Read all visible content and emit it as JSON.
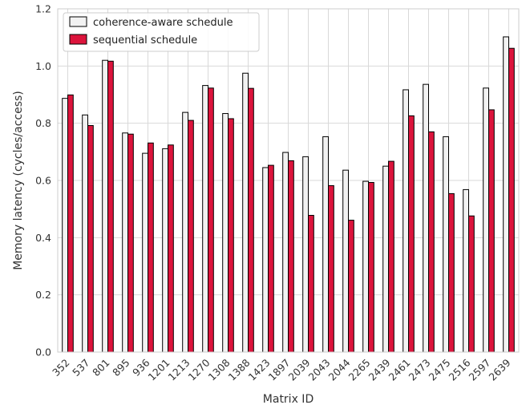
{
  "chart_data": {
    "type": "bar",
    "title": "",
    "xlabel": "Matrix ID",
    "ylabel": "Memory latency (cycles/access)",
    "ylim": [
      0,
      1.2
    ],
    "yticks": [
      "0.0",
      "0.2",
      "0.4",
      "0.6",
      "0.8",
      "1.0",
      "1.2"
    ],
    "grid": true,
    "legend_position": "top-left",
    "categories": [
      "352",
      "537",
      "801",
      "895",
      "936",
      "1201",
      "1213",
      "1270",
      "1308",
      "1388",
      "1423",
      "1897",
      "2039",
      "2043",
      "2044",
      "2265",
      "2439",
      "2461",
      "2473",
      "2475",
      "2516",
      "2597",
      "2639"
    ],
    "series": [
      {
        "name": "coherence-aware schedule",
        "color": "#f2f2f2",
        "values": [
          0.887,
          0.829,
          1.02,
          0.766,
          0.695,
          0.711,
          0.838,
          0.932,
          0.834,
          0.975,
          0.645,
          0.698,
          0.683,
          0.753,
          0.636,
          0.597,
          0.65,
          0.917,
          0.936,
          0.753,
          0.568,
          0.923,
          1.102
        ]
      },
      {
        "name": "sequential schedule",
        "color": "#dc143c",
        "values": [
          0.899,
          0.792,
          1.017,
          0.762,
          0.731,
          0.724,
          0.81,
          0.923,
          0.816,
          0.922,
          0.653,
          0.669,
          0.478,
          0.582,
          0.461,
          0.593,
          0.667,
          0.826,
          0.77,
          0.554,
          0.476,
          0.847,
          1.062
        ]
      }
    ]
  }
}
